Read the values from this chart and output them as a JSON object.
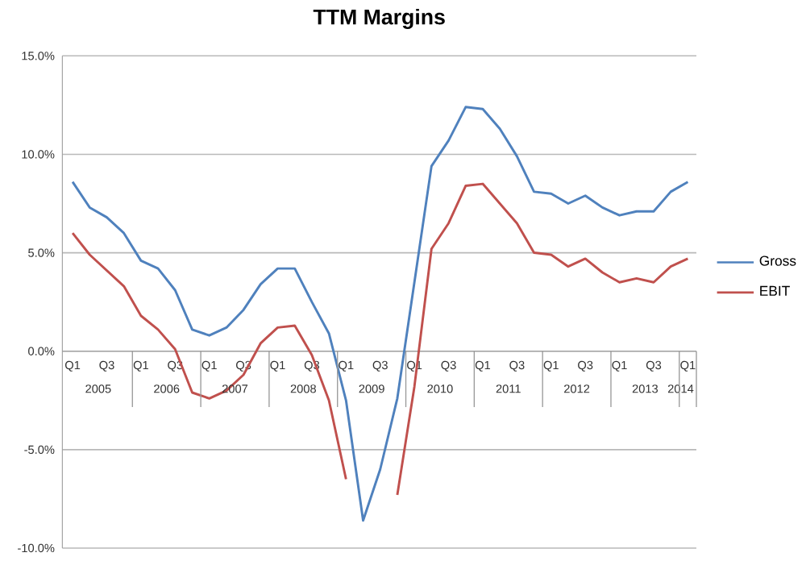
{
  "chart_data": {
    "type": "line",
    "title": "TTM Margins",
    "categories": [
      "Q1",
      null,
      "Q3",
      null,
      "Q1",
      null,
      "Q3",
      null,
      "Q1",
      null,
      "Q3",
      null,
      "Q1",
      null,
      "Q3",
      null,
      "Q1",
      null,
      "Q3",
      null,
      "Q1",
      null,
      "Q3",
      null,
      "Q1",
      null,
      "Q3",
      null,
      "Q1",
      null,
      "Q3",
      null,
      "Q1",
      null,
      "Q3",
      null,
      "Q1"
    ],
    "annotations": [
      "2005",
      "2006",
      "2007",
      "2008",
      "2009",
      "2010",
      "2011",
      "2012",
      "2013",
      "2014"
    ],
    "series": [
      {
        "name": "Gross",
        "color": "#4f81bd",
        "values": [
          8.6,
          7.3,
          6.8,
          6.0,
          4.6,
          4.2,
          3.1,
          1.1,
          0.8,
          1.2,
          2.1,
          3.4,
          4.2,
          4.2,
          2.5,
          0.9,
          -2.5,
          -8.6,
          -6.0,
          -2.4,
          3.5,
          9.4,
          10.7,
          12.4,
          12.3,
          11.3,
          9.9,
          8.1,
          8.0,
          7.5,
          7.9,
          7.3,
          6.9,
          7.1,
          7.1,
          8.1,
          8.6
        ]
      },
      {
        "name": "EBIT",
        "color": "#c0504d",
        "values": [
          6.0,
          4.9,
          4.1,
          3.3,
          1.8,
          1.1,
          0.1,
          -2.1,
          -2.4,
          -2.0,
          -1.2,
          0.4,
          1.2,
          1.3,
          -0.2,
          -2.5,
          -6.5,
          null,
          null,
          -7.3,
          -1.8,
          5.2,
          6.5,
          8.4,
          8.5,
          7.5,
          6.5,
          5.0,
          4.9,
          4.3,
          4.7,
          4.0,
          3.5,
          3.7,
          3.5,
          4.3,
          4.7
        ]
      }
    ],
    "ylim": [
      -10,
      15
    ],
    "yticks": [
      {
        "value": -10,
        "label": "-10.0%"
      },
      {
        "value": -5,
        "label": "-5.0%"
      },
      {
        "value": 0,
        "label": "0.0%"
      },
      {
        "value": 5,
        "label": "5.0%"
      },
      {
        "value": 10,
        "label": "10.0%"
      },
      {
        "value": 15,
        "label": "15.0%"
      }
    ],
    "grid": "y",
    "legend": "right",
    "marker": "none",
    "line_style": "solid"
  }
}
